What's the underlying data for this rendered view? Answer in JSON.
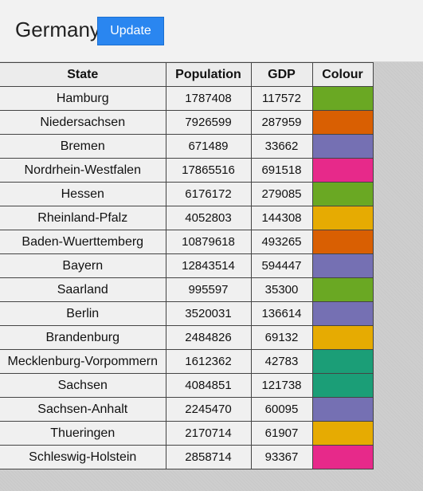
{
  "header": {
    "title": "Germany",
    "update_label": "Update"
  },
  "table": {
    "columns": [
      "State",
      "Population",
      "GDP",
      "Colour"
    ],
    "rows": [
      {
        "state": "Hamburg",
        "population": "1787408",
        "gdp": "117572",
        "colour": "#6aa823"
      },
      {
        "state": "Niedersachsen",
        "population": "7926599",
        "gdp": "287959",
        "colour": "#d95f02"
      },
      {
        "state": "Bremen",
        "population": "671489",
        "gdp": "33662",
        "colour": "#7570b3"
      },
      {
        "state": "Nordrhein-Westfalen",
        "population": "17865516",
        "gdp": "691518",
        "colour": "#e7298a"
      },
      {
        "state": "Hessen",
        "population": "6176172",
        "gdp": "279085",
        "colour": "#6aa823"
      },
      {
        "state": "Rheinland-Pfalz",
        "population": "4052803",
        "gdp": "144308",
        "colour": "#e6ab02"
      },
      {
        "state": "Baden-Wuerttemberg",
        "population": "10879618",
        "gdp": "493265",
        "colour": "#d95f02"
      },
      {
        "state": "Bayern",
        "population": "12843514",
        "gdp": "594447",
        "colour": "#7570b3"
      },
      {
        "state": "Saarland",
        "population": "995597",
        "gdp": "35300",
        "colour": "#6aa823"
      },
      {
        "state": "Berlin",
        "population": "3520031",
        "gdp": "136614",
        "colour": "#7570b3"
      },
      {
        "state": "Brandenburg",
        "population": "2484826",
        "gdp": "69132",
        "colour": "#e6ab02"
      },
      {
        "state": "Mecklenburg-Vorpommern",
        "population": "1612362",
        "gdp": "42783",
        "colour": "#1b9e77"
      },
      {
        "state": "Sachsen",
        "population": "4084851",
        "gdp": "121738",
        "colour": "#1b9e77"
      },
      {
        "state": "Sachsen-Anhalt",
        "population": "2245470",
        "gdp": "60095",
        "colour": "#7570b3"
      },
      {
        "state": "Thueringen",
        "population": "2170714",
        "gdp": "61907",
        "colour": "#e6ab02"
      },
      {
        "state": "Schleswig-Holstein",
        "population": "2858714",
        "gdp": "93367",
        "colour": "#e7298a"
      }
    ]
  }
}
